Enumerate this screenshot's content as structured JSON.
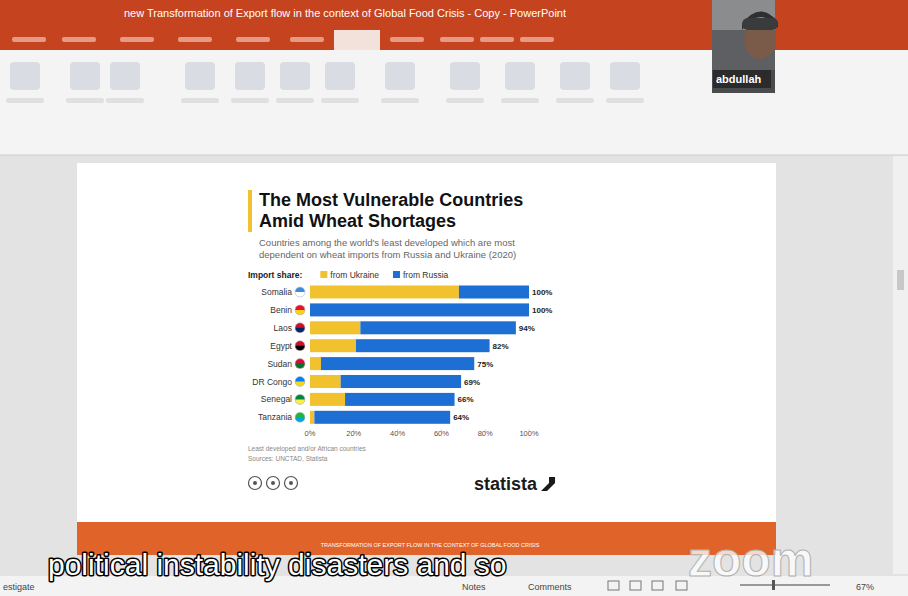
{
  "window": {
    "title": "new Transformation of Export flow in the context of Global Food Crisis - Copy - PowerPoint",
    "participant": "abdullah",
    "slide_footer": "TRANSFORMATION OF EXPORT FLOW IN THE CONTEXT OF GLOBAL FOOD CRISIS",
    "caption": "political instability disasters and so",
    "watermark": "zoom",
    "status_bar": {
      "left": "estigate",
      "notes": "Notes",
      "comments": "Comments",
      "zoom_level": "67%"
    }
  },
  "chart_data": {
    "type": "bar",
    "orientation": "horizontal",
    "stacked": true,
    "title": "The Most Vulnerable Countries Amid Wheat Shortages",
    "subtitle": "Countries among the world's least developed which are most dependent on wheat imports from Russia and Ukraine (2020)",
    "legend_title": "Import share:",
    "legend": "top left",
    "categories": [
      "Somalia",
      "Benin",
      "Laos",
      "Egypt",
      "Sudan",
      "DR Congo",
      "Senegal",
      "Tanzania"
    ],
    "series": [
      {
        "name": "from Ukraine",
        "color": "#f2c12e",
        "values": [
          68,
          0,
          23,
          21,
          5,
          14,
          16,
          2
        ]
      },
      {
        "name": "from Russia",
        "color": "#1d6fd3",
        "values": [
          32,
          100,
          71,
          61,
          70,
          55,
          50,
          62
        ]
      }
    ],
    "total_labels": [
      "100%",
      "100%",
      "94%",
      "82%",
      "75%",
      "69%",
      "66%",
      "64%"
    ],
    "xlim": [
      0,
      100
    ],
    "xticks": [
      {
        "value": 0,
        "label": "0%"
      },
      {
        "value": 20,
        "label": "20%"
      },
      {
        "value": 40,
        "label": "40%"
      },
      {
        "value": 60,
        "label": "60%"
      },
      {
        "value": 80,
        "label": "80%"
      },
      {
        "value": 100,
        "label": "100%"
      }
    ],
    "grid": false,
    "note": "Least developed and/or African countries",
    "source": "Sources: UNCTAD, Statista",
    "brand": "statista"
  }
}
